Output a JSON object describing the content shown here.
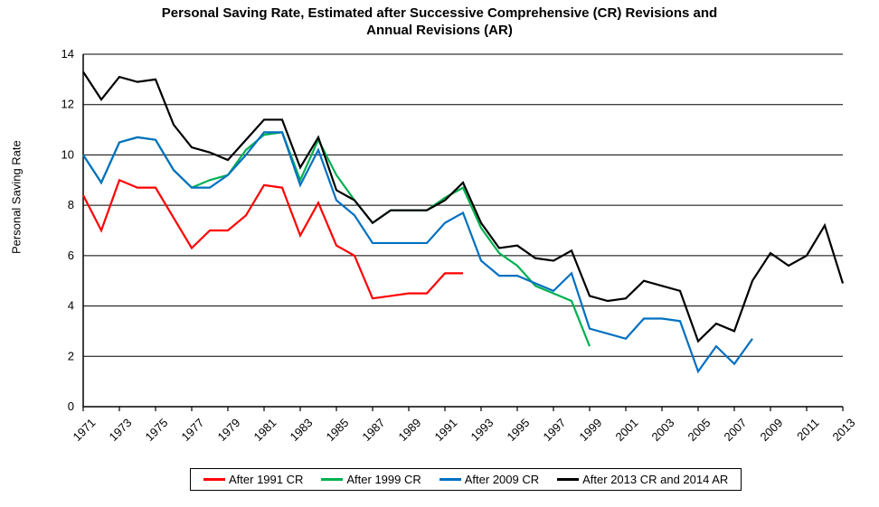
{
  "chart": {
    "type": "line",
    "title_line1": "Personal Saving Rate, Estimated after Successive Comprehensive (CR) Revisions and",
    "title_line2": "Annual Revisions (AR)",
    "title_fontsize": 15,
    "title_weight": "bold",
    "yaxis_label": "Personal Saving Rate",
    "label_fontsize": 13,
    "tick_fontsize": 13,
    "background_color": "#ffffff",
    "grid_color": "#000000",
    "axis_color": "#000000",
    "line_width": 2.2,
    "x": {
      "years": [
        1971,
        1972,
        1973,
        1974,
        1975,
        1976,
        1977,
        1978,
        1979,
        1980,
        1981,
        1982,
        1983,
        1984,
        1985,
        1986,
        1987,
        1988,
        1989,
        1990,
        1991,
        1992,
        1993,
        1994,
        1995,
        1996,
        1997,
        1998,
        1999,
        2000,
        2001,
        2002,
        2003,
        2004,
        2005,
        2006,
        2007,
        2008,
        2009,
        2010,
        2011,
        2012,
        2013
      ],
      "tick_years": [
        1971,
        1973,
        1975,
        1977,
        1979,
        1981,
        1983,
        1985,
        1987,
        1989,
        1991,
        1993,
        1995,
        1997,
        1999,
        2001,
        2003,
        2005,
        2007,
        2009,
        2011,
        2013
      ],
      "rotation_deg": -45
    },
    "y": {
      "min": 0,
      "max": 14,
      "tick_step": 2,
      "ticks": [
        0,
        2,
        4,
        6,
        8,
        10,
        12,
        14
      ]
    },
    "series": [
      {
        "name": "After 1991 CR",
        "color": "#ff0000",
        "years": [
          1971,
          1972,
          1973,
          1974,
          1975,
          1976,
          1977,
          1978,
          1979,
          1980,
          1981,
          1982,
          1983,
          1984,
          1985,
          1986,
          1987,
          1988,
          1989,
          1990,
          1991,
          1992
        ],
        "values": [
          8.4,
          7.0,
          9.0,
          8.7,
          8.7,
          7.5,
          6.3,
          7.0,
          7.0,
          7.6,
          8.8,
          8.7,
          6.8,
          8.1,
          6.4,
          6.0,
          4.3,
          4.4,
          4.5,
          4.5,
          5.3,
          5.3
        ]
      },
      {
        "name": "After 1999 CR",
        "color": "#00b050",
        "years": [
          1971,
          1972,
          1973,
          1974,
          1975,
          1976,
          1977,
          1978,
          1979,
          1980,
          1981,
          1982,
          1983,
          1984,
          1985,
          1986,
          1987,
          1988,
          1989,
          1990,
          1991,
          1992,
          1993,
          1994,
          1995,
          1996,
          1997,
          1998,
          1999
        ],
        "values": [
          10.0,
          8.9,
          10.5,
          10.7,
          10.6,
          9.4,
          8.7,
          9.0,
          9.2,
          10.2,
          10.8,
          10.9,
          9.0,
          10.6,
          9.2,
          8.2,
          7.3,
          7.8,
          7.8,
          7.8,
          8.3,
          8.7,
          7.1,
          6.1,
          5.6,
          4.8,
          4.5,
          4.2,
          2.4
        ]
      },
      {
        "name": "After 2009 CR",
        "color": "#0070c0",
        "years": [
          1971,
          1972,
          1973,
          1974,
          1975,
          1976,
          1977,
          1978,
          1979,
          1980,
          1981,
          1982,
          1983,
          1984,
          1985,
          1986,
          1987,
          1988,
          1989,
          1990,
          1991,
          1992,
          1993,
          1994,
          1995,
          1996,
          1997,
          1998,
          1999,
          2000,
          2001,
          2002,
          2003,
          2004,
          2005,
          2006,
          2007,
          2008
        ],
        "values": [
          10.0,
          8.9,
          10.5,
          10.7,
          10.6,
          9.4,
          8.7,
          8.7,
          9.2,
          10.0,
          10.9,
          10.9,
          8.8,
          10.2,
          8.2,
          7.6,
          6.5,
          6.5,
          6.5,
          6.5,
          7.3,
          7.7,
          5.8,
          5.2,
          5.2,
          4.9,
          4.6,
          5.3,
          3.1,
          2.9,
          2.7,
          3.5,
          3.5,
          3.4,
          1.4,
          2.4,
          1.7,
          2.7
        ]
      },
      {
        "name": "After 2013 CR and 2014 AR",
        "color": "#000000",
        "years": [
          1971,
          1972,
          1973,
          1974,
          1975,
          1976,
          1977,
          1978,
          1979,
          1980,
          1981,
          1982,
          1983,
          1984,
          1985,
          1986,
          1987,
          1988,
          1989,
          1990,
          1991,
          1992,
          1993,
          1994,
          1995,
          1996,
          1997,
          1998,
          1999,
          2000,
          2001,
          2002,
          2003,
          2004,
          2005,
          2006,
          2007,
          2008,
          2009,
          2010,
          2011,
          2012,
          2013
        ],
        "values": [
          13.3,
          12.2,
          13.1,
          12.9,
          13.0,
          11.2,
          10.3,
          10.1,
          9.8,
          10.6,
          11.4,
          11.4,
          9.5,
          10.7,
          8.6,
          8.2,
          7.3,
          7.8,
          7.8,
          7.8,
          8.2,
          8.9,
          7.3,
          6.3,
          6.4,
          5.9,
          5.8,
          6.2,
          4.4,
          4.2,
          4.3,
          5.0,
          4.8,
          4.6,
          2.6,
          3.3,
          3.0,
          5.0,
          6.1,
          5.6,
          6.0,
          7.2,
          4.9
        ]
      }
    ],
    "legend": {
      "position": "bottom",
      "border_color": "#000000",
      "background": "#ffffff"
    }
  }
}
